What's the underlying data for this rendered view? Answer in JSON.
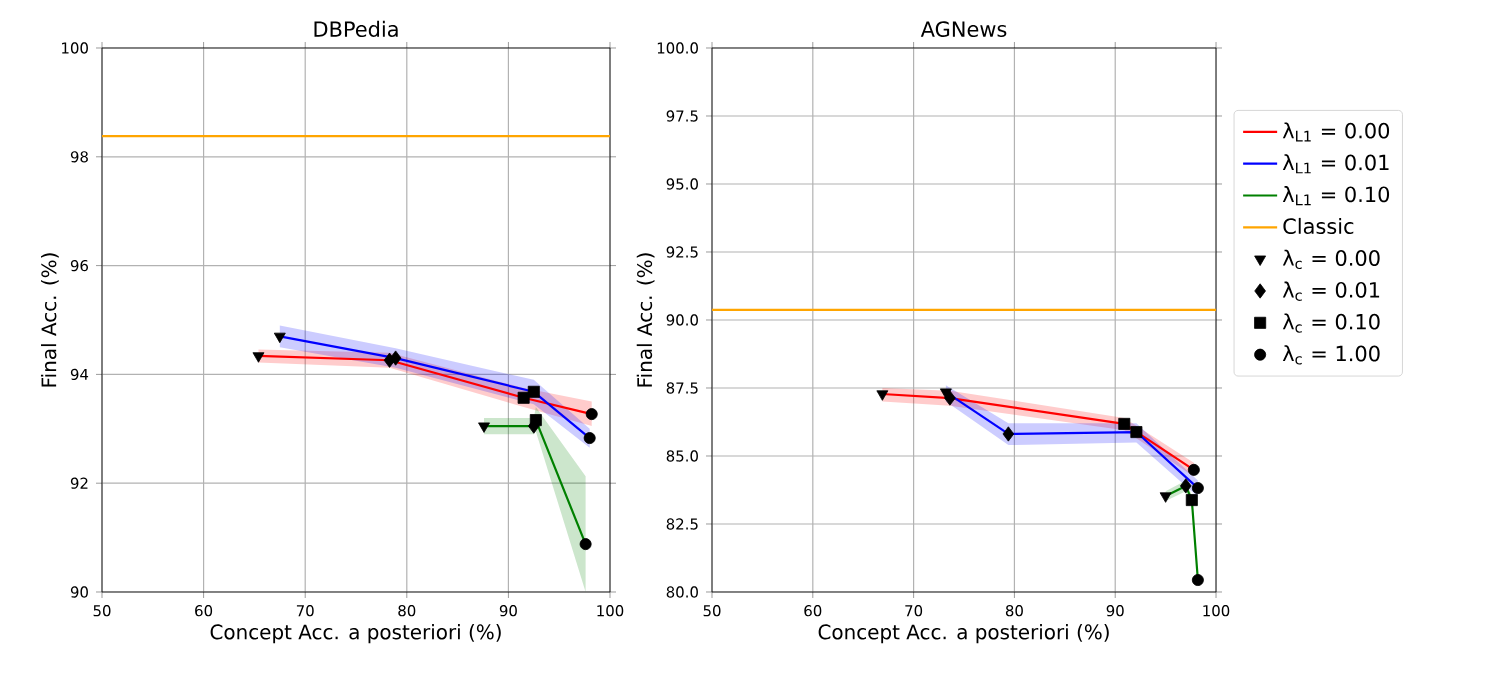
{
  "chart_data": [
    {
      "type": "line",
      "title": "DBPedia",
      "xlabel": "Concept Acc. a posteriori (%)",
      "ylabel": "Final Acc. (%)",
      "xlim": [
        50,
        100
      ],
      "xticks": [
        50,
        60,
        70,
        80,
        90,
        100
      ],
      "ylim": [
        90,
        100
      ],
      "yticks": [
        90,
        92,
        94,
        96,
        98,
        100
      ],
      "grid": true,
      "series": [
        {
          "type": "line",
          "color": "#ff0000",
          "x": [
            65.4,
            78.3,
            91.5,
            98.2
          ],
          "values": [
            94.34,
            94.26,
            93.57,
            93.27
          ],
          "lower": [
            94.22,
            94.12,
            93.4,
            93.05
          ],
          "upper": [
            94.46,
            94.4,
            93.75,
            93.5
          ]
        },
        {
          "type": "line",
          "color": "#0000ff",
          "x": [
            67.5,
            78.9,
            92.5,
            98.0
          ],
          "values": [
            94.7,
            94.3,
            93.68,
            92.83
          ],
          "lower": [
            94.5,
            94.12,
            93.45,
            92.65
          ],
          "upper": [
            94.9,
            94.48,
            93.9,
            93.0
          ]
        },
        {
          "type": "line",
          "color": "#008000",
          "x": [
            87.6,
            92.5,
            92.7,
            97.6
          ],
          "values": [
            93.05,
            93.05,
            93.16,
            90.88
          ],
          "lower": [
            92.9,
            92.9,
            92.95,
            90.0
          ],
          "upper": [
            93.2,
            93.2,
            93.4,
            92.13
          ]
        },
        {
          "type": "scatter",
          "color": "#000000",
          "marker": "triangle",
          "x": [
            65.4,
            67.5,
            87.6
          ],
          "values": [
            94.34,
            94.7,
            93.05
          ]
        },
        {
          "type": "scatter",
          "color": "#000000",
          "marker": "diamond",
          "x": [
            78.3,
            78.9,
            92.5
          ],
          "values": [
            94.26,
            94.3,
            93.05
          ]
        },
        {
          "type": "scatter",
          "color": "#000000",
          "marker": "square",
          "x": [
            91.5,
            92.5,
            92.7
          ],
          "values": [
            93.57,
            93.68,
            93.16
          ]
        },
        {
          "type": "scatter",
          "color": "#000000",
          "marker": "circle",
          "x": [
            98.2,
            98.0,
            97.6
          ],
          "values": [
            93.27,
            92.83,
            90.88
          ]
        }
      ],
      "ref_lines": [
        {
          "axis": "y",
          "value": 98.38,
          "color": "#ffa500"
        }
      ]
    },
    {
      "type": "line",
      "title": "AGNews",
      "xlabel": "Concept Acc. a posteriori (%)",
      "ylabel": "Final Acc. (%)",
      "xlim": [
        50,
        100
      ],
      "xticks": [
        50,
        60,
        70,
        80,
        90,
        100
      ],
      "ylim": [
        80,
        100
      ],
      "yticks": [
        {
          "value": 80,
          "label": "80.0"
        },
        {
          "value": 82.5,
          "label": "82.5"
        },
        {
          "value": 85,
          "label": "85.0"
        },
        {
          "value": 87.5,
          "label": "87.5"
        },
        {
          "value": 90,
          "label": "90.0"
        },
        {
          "value": 92.5,
          "label": "92.5"
        },
        {
          "value": 95,
          "label": "95.0"
        },
        {
          "value": 97.5,
          "label": "97.5"
        },
        {
          "value": 100,
          "label": "100.0"
        }
      ],
      "grid": true,
      "legend": "right",
      "series": [
        {
          "type": "line",
          "name": "λ$_{L1}$ = 0.00",
          "color": "#ff0000",
          "x": [
            66.9,
            73.6,
            90.9,
            97.8
          ],
          "values": [
            87.28,
            87.13,
            86.18,
            84.49
          ],
          "lower": [
            87.0,
            86.85,
            85.95,
            84.25
          ],
          "upper": [
            87.5,
            87.4,
            86.4,
            84.75
          ]
        },
        {
          "type": "line",
          "name": "λ$_{L1}$ = 0.01",
          "color": "#0000ff",
          "x": [
            73.2,
            79.4,
            92.1,
            98.2
          ],
          "values": [
            87.35,
            85.81,
            85.88,
            83.82
          ],
          "lower": [
            87.0,
            85.4,
            85.5,
            83.5
          ],
          "upper": [
            87.6,
            86.2,
            86.2,
            84.1
          ]
        },
        {
          "type": "line",
          "name": "λ$_{L1}$ = 0.10",
          "color": "#008000",
          "x": [
            95.0,
            97.0,
            97.6,
            98.2
          ],
          "values": [
            83.53,
            83.9,
            83.38,
            80.44
          ],
          "lower": [
            83.35,
            83.7,
            83.2,
            80.35
          ],
          "upper": [
            83.7,
            84.1,
            83.55,
            80.55
          ]
        },
        {
          "type": "scatter",
          "name": "λ$_{c}$ = 0.00",
          "color": "#000000",
          "marker": "triangle",
          "x": [
            66.9,
            73.2,
            95.0
          ],
          "values": [
            87.28,
            87.35,
            83.53
          ]
        },
        {
          "type": "scatter",
          "name": "λ$_{c}$ = 0.01",
          "color": "#000000",
          "marker": "diamond",
          "x": [
            73.6,
            79.4,
            97.0
          ],
          "values": [
            87.13,
            85.81,
            83.9
          ]
        },
        {
          "type": "scatter",
          "name": "λ$_{c}$ = 0.10",
          "color": "#000000",
          "marker": "square",
          "x": [
            90.9,
            92.1,
            97.6
          ],
          "values": [
            86.18,
            85.88,
            83.38
          ]
        },
        {
          "type": "scatter",
          "name": "λ$_{c}$ = 1.00",
          "color": "#000000",
          "marker": "circle",
          "x": [
            97.8,
            98.2,
            98.2
          ],
          "values": [
            84.49,
            83.82,
            80.44
          ]
        }
      ],
      "ref_lines": [
        {
          "axis": "y",
          "value": 90.37,
          "label": "Classic",
          "color": "#ffa500"
        }
      ]
    }
  ]
}
